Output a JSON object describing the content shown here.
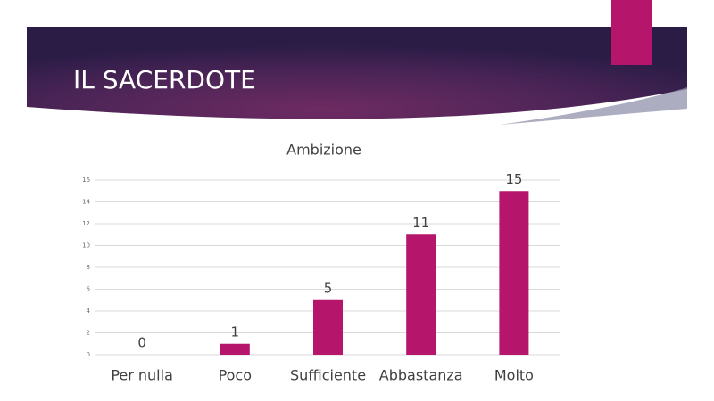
{
  "slide_title": "IL SACERDOTE",
  "chart_data": {
    "type": "bar",
    "title": "Ambizione",
    "categories": [
      "Per nulla",
      "Poco",
      "Sufficiente",
      "Abbastanza",
      "Molto"
    ],
    "values": [
      0,
      1,
      5,
      11,
      15
    ],
    "color": "#b5156b",
    "ylim": [
      0,
      16
    ],
    "yticks": [
      0,
      2,
      4,
      6,
      8,
      10,
      12,
      14,
      16
    ],
    "grid": true
  }
}
